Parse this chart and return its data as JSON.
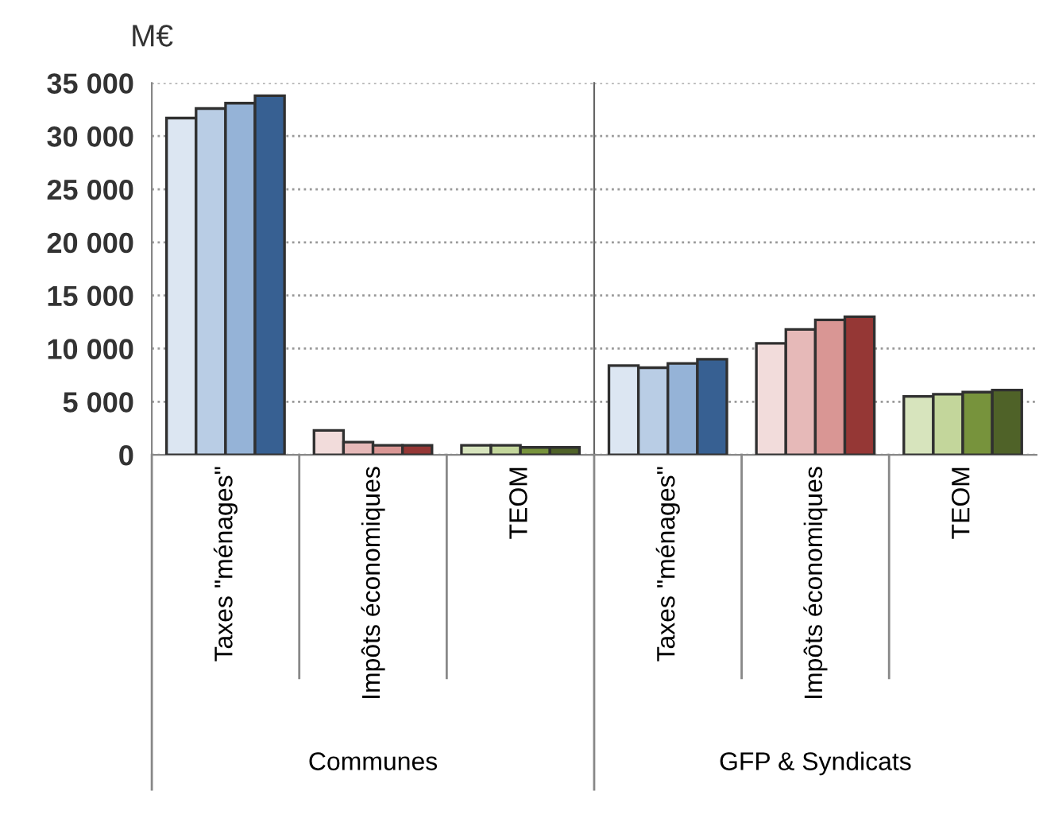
{
  "chart_data": [
    {
      "type": "bar",
      "ylabel": "M€",
      "xlabel": "Communes",
      "categories": [
        "Taxes \"ménages\"",
        "Impôts économiques",
        "TEOM"
      ],
      "series": [
        {
          "colors": [
            "#dce6f2",
            "#f2dcdb",
            "#d7e4bd"
          ],
          "values": [
            31700,
            2300,
            900
          ]
        },
        {
          "colors": [
            "#b9cde5",
            "#e6b9b8",
            "#c3d69b"
          ],
          "values": [
            32600,
            1200,
            900
          ]
        },
        {
          "colors": [
            "#95b3d7",
            "#d99694",
            "#77933c"
          ],
          "values": [
            33100,
            900,
            700
          ]
        },
        {
          "colors": [
            "#376092",
            "#953735",
            "#4f6228"
          ],
          "values": [
            33800,
            900,
            700
          ]
        }
      ],
      "ylim": [
        0,
        35000
      ],
      "yticks": [
        0,
        {
          "value": 5000,
          "label": "5 000"
        },
        {
          "value": 10000,
          "label": "10 000"
        },
        {
          "value": 15000,
          "label": "15 000"
        },
        {
          "value": 20000,
          "label": "20 000"
        },
        {
          "value": 25000,
          "label": "25 000"
        },
        {
          "value": 30000,
          "label": "30 000"
        },
        {
          "value": 35000,
          "label": "35 000"
        }
      ],
      "grid": "y"
    },
    {
      "type": "bar",
      "xlabel": "GFP & Syndicats",
      "categories": [
        "Taxes \"ménages\"",
        "Impôts économiques",
        "TEOM"
      ],
      "series": [
        {
          "colors": [
            "#dce6f2",
            "#f2dcdb",
            "#d7e4bd"
          ],
          "values": [
            8400,
            10500,
            5500
          ]
        },
        {
          "colors": [
            "#b9cde5",
            "#e6b9b8",
            "#c3d69b"
          ],
          "values": [
            8200,
            11800,
            5700
          ]
        },
        {
          "colors": [
            "#95b3d7",
            "#d99694",
            "#77933c"
          ],
          "values": [
            8600,
            12700,
            5900
          ]
        },
        {
          "colors": [
            "#376092",
            "#953735",
            "#4f6228"
          ],
          "values": [
            9000,
            13000,
            6100
          ]
        }
      ],
      "ylim": [
        0,
        35000
      ],
      "yticks": [
        0,
        5000,
        10000,
        15000,
        20000,
        25000,
        30000,
        35000
      ],
      "grid": "y",
      "tick_labels": "x"
    }
  ]
}
